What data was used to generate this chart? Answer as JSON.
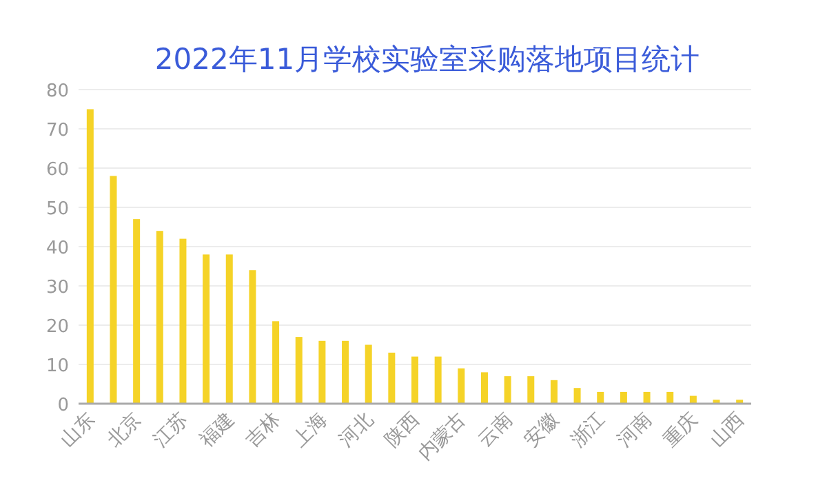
{
  "chart_data": {
    "type": "bar",
    "title": "2022年11月学校实验室采购落地项目统计",
    "categories": [
      "山东",
      null,
      "北京",
      null,
      "江苏",
      null,
      "福建",
      null,
      "吉林",
      null,
      "上海",
      null,
      "河北",
      null,
      "陕西",
      null,
      "内蒙古",
      null,
      "云南",
      null,
      "安徽",
      null,
      "浙江",
      null,
      "河南",
      null,
      "重庆",
      null,
      "山西"
    ],
    "values": [
      75,
      58,
      47,
      44,
      42,
      38,
      38,
      34,
      21,
      17,
      16,
      16,
      15,
      13,
      12,
      12,
      9,
      8,
      7,
      7,
      6,
      4,
      3,
      3,
      3,
      3,
      2,
      1,
      1
    ],
    "color": "#f5d327",
    "ylim": [
      0,
      80
    ],
    "yticks": [
      0,
      10,
      20,
      30,
      40,
      50,
      60,
      70,
      80
    ],
    "grid": "y"
  }
}
